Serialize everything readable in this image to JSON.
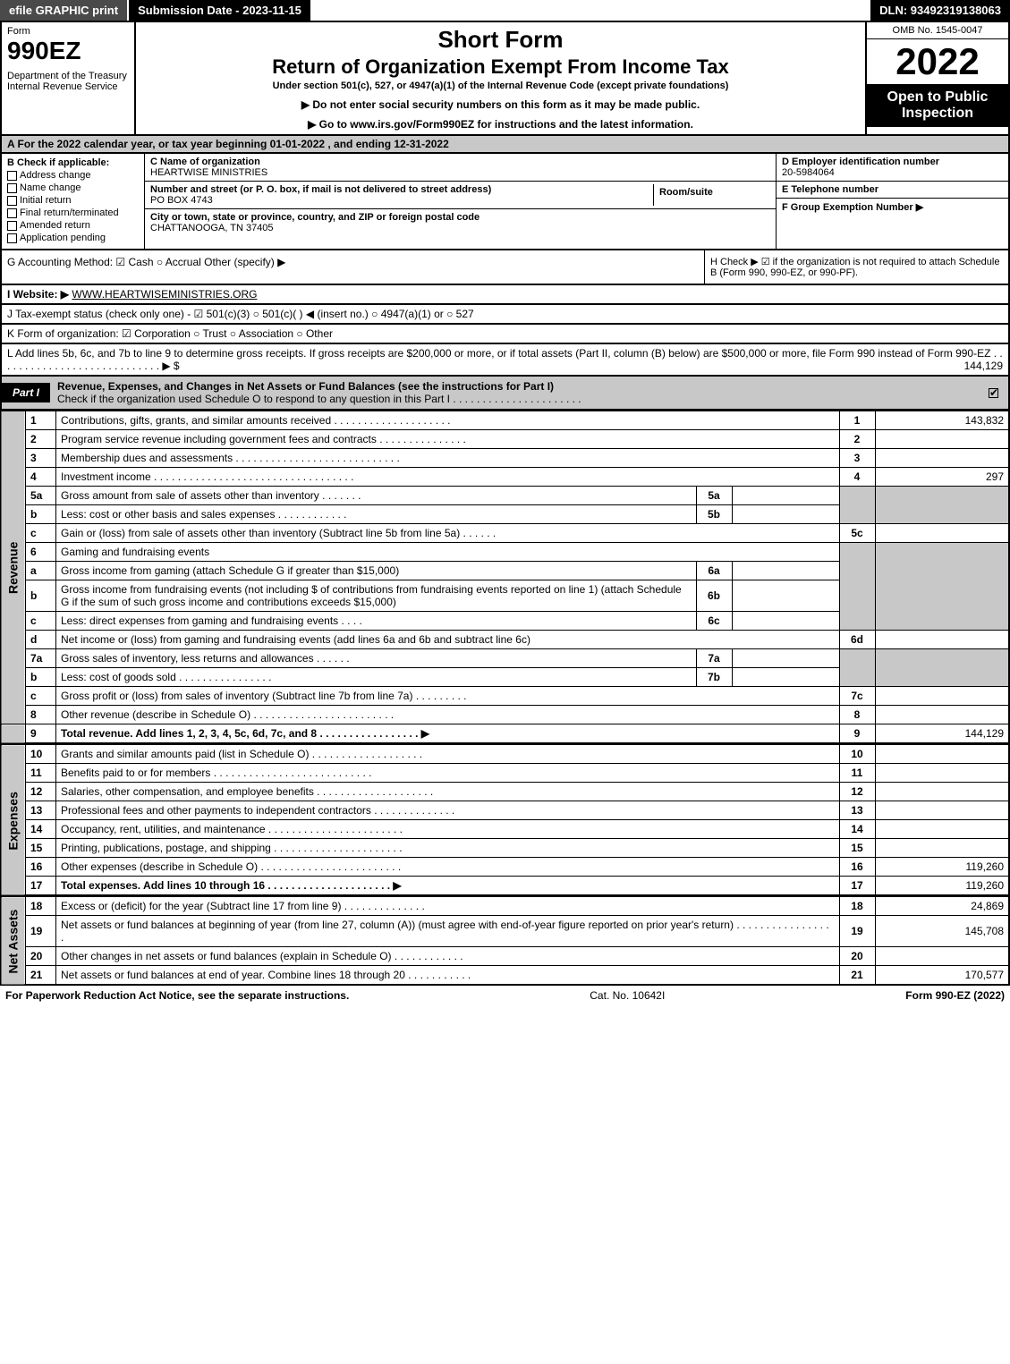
{
  "topbar": {
    "efile": "efile GRAPHIC print",
    "submission": "Submission Date - 2023-11-15",
    "dln": "DLN: 93492319138063"
  },
  "header": {
    "form_label": "Form",
    "form_no": "990EZ",
    "dept": "Department of the Treasury\nInternal Revenue Service",
    "short": "Short Form",
    "title": "Return of Organization Exempt From Income Tax",
    "sub1": "Under section 501(c), 527, or 4947(a)(1) of the Internal Revenue Code (except private foundations)",
    "sub2a": "▶ Do not enter social security numbers on this form as it may be made public.",
    "sub2b": "▶ Go to www.irs.gov/Form990EZ for instructions and the latest information.",
    "omb": "OMB No. 1545-0047",
    "year": "2022",
    "open": "Open to Public Inspection"
  },
  "row_a": "A  For the 2022 calendar year, or tax year beginning 01-01-2022 , and ending 12-31-2022",
  "box_b": {
    "label": "B  Check if applicable:",
    "opts": [
      "Address change",
      "Name change",
      "Initial return",
      "Final return/terminated",
      "Amended return",
      "Application pending"
    ]
  },
  "box_c": {
    "name_label": "C Name of organization",
    "name": "HEARTWISE MINISTRIES",
    "addr_label": "Number and street (or P. O. box, if mail is not delivered to street address)",
    "addr": "PO BOX 4743",
    "room_label": "Room/suite",
    "city_label": "City or town, state or province, country, and ZIP or foreign postal code",
    "city": "CHATTANOOGA, TN  37405"
  },
  "box_d": {
    "label": "D Employer identification number",
    "value": "20-5984064",
    "e_label": "E Telephone number",
    "f_label": "F Group Exemption Number  ▶"
  },
  "row_g": "G Accounting Method:  ☑ Cash  ○ Accrual  Other (specify) ▶",
  "row_h": "H  Check ▶ ☑ if the organization is not required to attach Schedule B (Form 990, 990-EZ, or 990-PF).",
  "row_i_label": "I Website: ▶",
  "row_i_val": "WWW.HEARTWISEMINISTRIES.ORG",
  "row_j": "J Tax-exempt status (check only one) - ☑ 501(c)(3) ○ 501(c)(  ) ◀ (insert no.) ○ 4947(a)(1) or ○ 527",
  "row_k": "K Form of organization:  ☑ Corporation  ○ Trust  ○ Association  ○ Other",
  "row_l_text": "L Add lines 5b, 6c, and 7b to line 9 to determine gross receipts. If gross receipts are $200,000 or more, or if total assets (Part II, column (B) below) are $500,000 or more, file Form 990 instead of Form 990-EZ . . . . . . . . . . . . . . . . . . . . . . . . . . . . ▶ $",
  "row_l_amt": "144,129",
  "part1": {
    "tab": "Part I",
    "title": "Revenue, Expenses, and Changes in Net Assets or Fund Balances (see the instructions for Part I)",
    "sub": "Check if the organization used Schedule O to respond to any question in this Part I . . . . . . . . . . . . . . . . . . . . . .",
    "checked": true
  },
  "side_labels": {
    "rev": "Revenue",
    "exp": "Expenses",
    "net": "Net Assets"
  },
  "lines": {
    "1": {
      "n": "1",
      "d": "Contributions, gifts, grants, and similar amounts received",
      "rn": "1",
      "rv": "143,832"
    },
    "2": {
      "n": "2",
      "d": "Program service revenue including government fees and contracts",
      "rn": "2",
      "rv": ""
    },
    "3": {
      "n": "3",
      "d": "Membership dues and assessments",
      "rn": "3",
      "rv": ""
    },
    "4": {
      "n": "4",
      "d": "Investment income",
      "rn": "4",
      "rv": "297"
    },
    "5a": {
      "n": "5a",
      "d": "Gross amount from sale of assets other than inventory",
      "ib": "5a"
    },
    "5b": {
      "n": "b",
      "d": "Less: cost or other basis and sales expenses",
      "ib": "5b"
    },
    "5c": {
      "n": "c",
      "d": "Gain or (loss) from sale of assets other than inventory (Subtract line 5b from line 5a)",
      "rn": "5c",
      "rv": ""
    },
    "6": {
      "n": "6",
      "d": "Gaming and fundraising events"
    },
    "6a": {
      "n": "a",
      "d": "Gross income from gaming (attach Schedule G if greater than $15,000)",
      "ib": "6a"
    },
    "6b": {
      "n": "b",
      "d": "Gross income from fundraising events (not including $                   of contributions from fundraising events reported on line 1) (attach Schedule G if the sum of such gross income and contributions exceeds $15,000)",
      "ib": "6b"
    },
    "6c": {
      "n": "c",
      "d": "Less: direct expenses from gaming and fundraising events",
      "ib": "6c"
    },
    "6d": {
      "n": "d",
      "d": "Net income or (loss) from gaming and fundraising events (add lines 6a and 6b and subtract line 6c)",
      "rn": "6d",
      "rv": ""
    },
    "7a": {
      "n": "7a",
      "d": "Gross sales of inventory, less returns and allowances",
      "ib": "7a"
    },
    "7b": {
      "n": "b",
      "d": "Less: cost of goods sold",
      "ib": "7b"
    },
    "7c": {
      "n": "c",
      "d": "Gross profit or (loss) from sales of inventory (Subtract line 7b from line 7a)",
      "rn": "7c",
      "rv": ""
    },
    "8": {
      "n": "8",
      "d": "Other revenue (describe in Schedule O)",
      "rn": "8",
      "rv": ""
    },
    "9": {
      "n": "9",
      "d": "Total revenue. Add lines 1, 2, 3, 4, 5c, 6d, 7c, and 8  . . . . . . . . . . . . . . . . . ▶",
      "rn": "9",
      "rv": "144,129",
      "bold": true
    },
    "10": {
      "n": "10",
      "d": "Grants and similar amounts paid (list in Schedule O)",
      "rn": "10",
      "rv": ""
    },
    "11": {
      "n": "11",
      "d": "Benefits paid to or for members",
      "rn": "11",
      "rv": ""
    },
    "12": {
      "n": "12",
      "d": "Salaries, other compensation, and employee benefits",
      "rn": "12",
      "rv": ""
    },
    "13": {
      "n": "13",
      "d": "Professional fees and other payments to independent contractors",
      "rn": "13",
      "rv": ""
    },
    "14": {
      "n": "14",
      "d": "Occupancy, rent, utilities, and maintenance",
      "rn": "14",
      "rv": ""
    },
    "15": {
      "n": "15",
      "d": "Printing, publications, postage, and shipping",
      "rn": "15",
      "rv": ""
    },
    "16": {
      "n": "16",
      "d": "Other expenses (describe in Schedule O)",
      "rn": "16",
      "rv": "119,260"
    },
    "17": {
      "n": "17",
      "d": "Total expenses. Add lines 10 through 16  . . . . . . . . . . . . . . . . . . . . . ▶",
      "rn": "17",
      "rv": "119,260",
      "bold": true
    },
    "18": {
      "n": "18",
      "d": "Excess or (deficit) for the year (Subtract line 17 from line 9)",
      "rn": "18",
      "rv": "24,869"
    },
    "19": {
      "n": "19",
      "d": "Net assets or fund balances at beginning of year (from line 27, column (A)) (must agree with end-of-year figure reported on prior year's return)",
      "rn": "19",
      "rv": "145,708"
    },
    "20": {
      "n": "20",
      "d": "Other changes in net assets or fund balances (explain in Schedule O)",
      "rn": "20",
      "rv": ""
    },
    "21": {
      "n": "21",
      "d": "Net assets or fund balances at end of year. Combine lines 18 through 20",
      "rn": "21",
      "rv": "170,577"
    }
  },
  "footer": {
    "left": "For Paperwork Reduction Act Notice, see the separate instructions.",
    "mid": "Cat. No. 10642I",
    "right": "Form 990-EZ (2022)"
  },
  "colors": {
    "black": "#000000",
    "gray_bg": "#c8c8c8",
    "white": "#ffffff"
  }
}
